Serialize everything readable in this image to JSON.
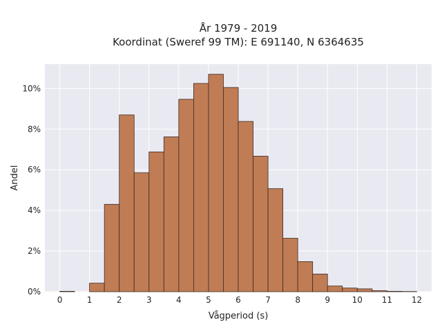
{
  "chart_data": {
    "type": "bar",
    "title_line1": "År 1979 - 2019",
    "title_line2": "Koordinat (Sweref 99 TM): E 691140, N 6364635",
    "xlabel": "Vågperiod (s)",
    "ylabel": "Andel",
    "xlim": [
      -0.5,
      12.5
    ],
    "ylim": [
      0,
      11.2
    ],
    "x_ticks": [
      0,
      1,
      2,
      3,
      4,
      5,
      6,
      7,
      8,
      9,
      10,
      11,
      12
    ],
    "y_ticks": [
      0,
      2,
      4,
      6,
      8,
      10
    ],
    "y_tick_labels": [
      "0%",
      "2%",
      "4%",
      "6%",
      "8%",
      "10%"
    ],
    "bin_width": 0.5,
    "bin_starts": [
      0,
      0.5,
      1,
      1.5,
      2,
      2.5,
      3,
      3.5,
      4,
      4.5,
      5,
      5.5,
      6,
      6.5,
      7,
      7.5,
      8,
      8.5,
      9,
      9.5,
      10,
      10.5,
      11,
      11.5
    ],
    "values": [
      0.02,
      0.0,
      0.42,
      4.3,
      8.7,
      5.85,
      6.88,
      7.62,
      9.47,
      10.25,
      10.7,
      10.05,
      8.38,
      6.67,
      5.07,
      2.63,
      1.48,
      0.87,
      0.28,
      0.18,
      0.14,
      0.05,
      0.02,
      0.01
    ],
    "bar_color": "#c07c55",
    "bar_edge_color": "#3a2a20",
    "background_color": "#e9e9f1",
    "grid": true
  }
}
